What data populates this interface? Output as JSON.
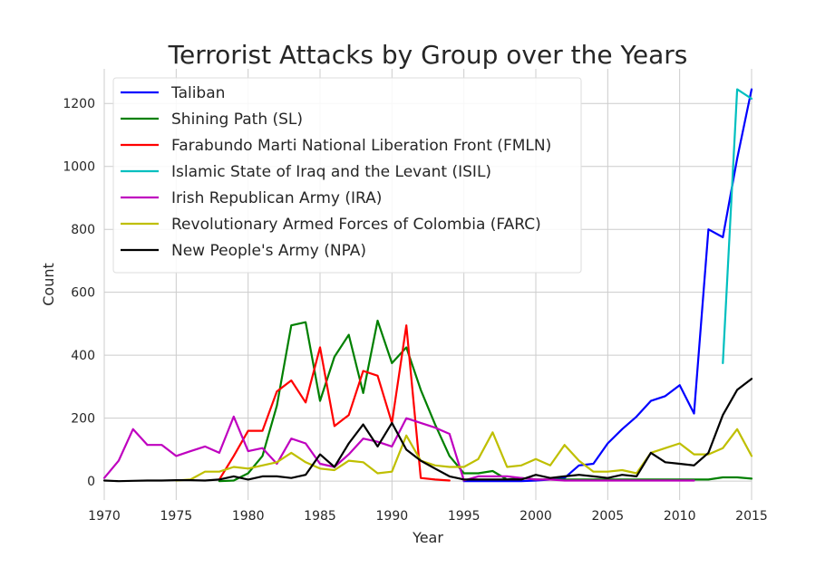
{
  "chart_data": {
    "type": "line",
    "title": "Terrorist Attacks by Group over the Years",
    "xlabel": "Year",
    "ylabel": "Count",
    "xlim": [
      1970,
      2015
    ],
    "ylim": [
      -60,
      1310
    ],
    "x_ticks": [
      1970,
      1975,
      1980,
      1985,
      1990,
      1995,
      2000,
      2005,
      2010,
      2015
    ],
    "y_ticks": [
      0,
      200,
      400,
      600,
      800,
      1000,
      1200
    ],
    "grid": true,
    "legend_position": "top-left",
    "series": [
      {
        "name": "Taliban",
        "color": "#0000ff",
        "x": [
          1995,
          1996,
          1997,
          1998,
          1999,
          2000,
          2001,
          2002,
          2003,
          2004,
          2005,
          2006,
          2007,
          2008,
          2009,
          2010,
          2011,
          2012,
          2013,
          2014,
          2015
        ],
        "y": [
          0,
          0,
          0,
          0,
          0,
          2,
          5,
          10,
          50,
          55,
          120,
          165,
          205,
          255,
          270,
          305,
          215,
          800,
          775,
          1025,
          1245
        ]
      },
      {
        "name": "Shining Path (SL)",
        "color": "#008000",
        "x": [
          1978,
          1979,
          1980,
          1981,
          1982,
          1983,
          1984,
          1985,
          1986,
          1987,
          1988,
          1989,
          1990,
          1991,
          1992,
          1993,
          1994,
          1995,
          1996,
          1997,
          1998,
          1999,
          2000,
          2001,
          2002,
          2003,
          2004,
          2005,
          2006,
          2007,
          2008,
          2009,
          2010,
          2011,
          2012,
          2013,
          2014,
          2015
        ],
        "y": [
          0,
          2,
          25,
          80,
          240,
          495,
          505,
          255,
          395,
          465,
          280,
          510,
          375,
          425,
          290,
          180,
          80,
          25,
          25,
          32,
          5,
          10,
          5,
          5,
          5,
          5,
          5,
          5,
          5,
          5,
          5,
          5,
          5,
          5,
          5,
          12,
          12,
          8
        ]
      },
      {
        "name": "Farabundo Marti National Liberation Front (FMLN)",
        "color": "#ff0000",
        "x": [
          1978,
          1979,
          1980,
          1981,
          1982,
          1983,
          1984,
          1985,
          1986,
          1987,
          1988,
          1989,
          1990,
          1991,
          1992,
          1993,
          1994
        ],
        "y": [
          5,
          80,
          160,
          160,
          285,
          320,
          250,
          425,
          175,
          210,
          350,
          335,
          185,
          495,
          10,
          5,
          2
        ]
      },
      {
        "name": "Islamic State of Iraq and the Levant (ISIL)",
        "color": "#00bfbf",
        "x": [
          2013,
          2014,
          2015
        ],
        "y": [
          375,
          1245,
          1215
        ]
      },
      {
        "name": "Irish Republican Army (IRA)",
        "color": "#bf00bf",
        "x": [
          1970,
          1971,
          1972,
          1973,
          1974,
          1975,
          1976,
          1977,
          1978,
          1979,
          1980,
          1981,
          1982,
          1983,
          1984,
          1985,
          1986,
          1987,
          1988,
          1989,
          1990,
          1991,
          1992,
          1993,
          1994,
          1995,
          1996,
          1997,
          1998,
          1999,
          2000,
          2001,
          2002,
          2003,
          2004,
          2005,
          2006,
          2007,
          2008,
          2009,
          2010,
          2011
        ],
        "y": [
          10,
          65,
          165,
          115,
          115,
          80,
          95,
          110,
          90,
          205,
          95,
          105,
          55,
          135,
          120,
          55,
          45,
          85,
          135,
          125,
          110,
          200,
          185,
          170,
          150,
          2,
          15,
          15,
          15,
          10,
          5,
          5,
          2,
          2,
          2,
          2,
          2,
          2,
          2,
          2,
          2,
          2
        ]
      },
      {
        "name": "Revolutionary Armed Forces of Colombia (FARC)",
        "color": "#bfbf00",
        "x": [
          1975,
          1976,
          1977,
          1978,
          1979,
          1980,
          1981,
          1982,
          1983,
          1984,
          1985,
          1986,
          1987,
          1988,
          1989,
          1990,
          1991,
          1992,
          1993,
          1994,
          1995,
          1996,
          1997,
          1998,
          1999,
          2000,
          2001,
          2002,
          2003,
          2004,
          2005,
          2006,
          2007,
          2008,
          2009,
          2010,
          2011,
          2012,
          2013,
          2014,
          2015
        ],
        "y": [
          2,
          5,
          30,
          30,
          45,
          40,
          50,
          60,
          90,
          60,
          40,
          35,
          65,
          60,
          25,
          30,
          145,
          65,
          50,
          45,
          45,
          70,
          155,
          45,
          50,
          70,
          50,
          115,
          65,
          30,
          30,
          35,
          25,
          90,
          105,
          120,
          85,
          85,
          105,
          165,
          80
        ]
      },
      {
        "name": "New People's Army (NPA)",
        "color": "#000000",
        "x": [
          1970,
          1971,
          1972,
          1973,
          1974,
          1975,
          1976,
          1977,
          1978,
          1979,
          1980,
          1981,
          1982,
          1983,
          1984,
          1985,
          1986,
          1987,
          1988,
          1989,
          1990,
          1991,
          1992,
          1993,
          1994,
          1995,
          1996,
          1997,
          1998,
          1999,
          2000,
          2001,
          2002,
          2003,
          2004,
          2005,
          2006,
          2007,
          2008,
          2009,
          2010,
          2011,
          2012,
          2013,
          2014,
          2015
        ],
        "y": [
          2,
          0,
          1,
          2,
          2,
          3,
          3,
          2,
          5,
          15,
          5,
          15,
          15,
          10,
          20,
          85,
          45,
          120,
          180,
          110,
          185,
          100,
          65,
          40,
          15,
          5,
          5,
          5,
          5,
          5,
          20,
          10,
          15,
          20,
          15,
          10,
          20,
          15,
          90,
          60,
          55,
          50,
          90,
          210,
          290,
          325
        ]
      }
    ]
  }
}
